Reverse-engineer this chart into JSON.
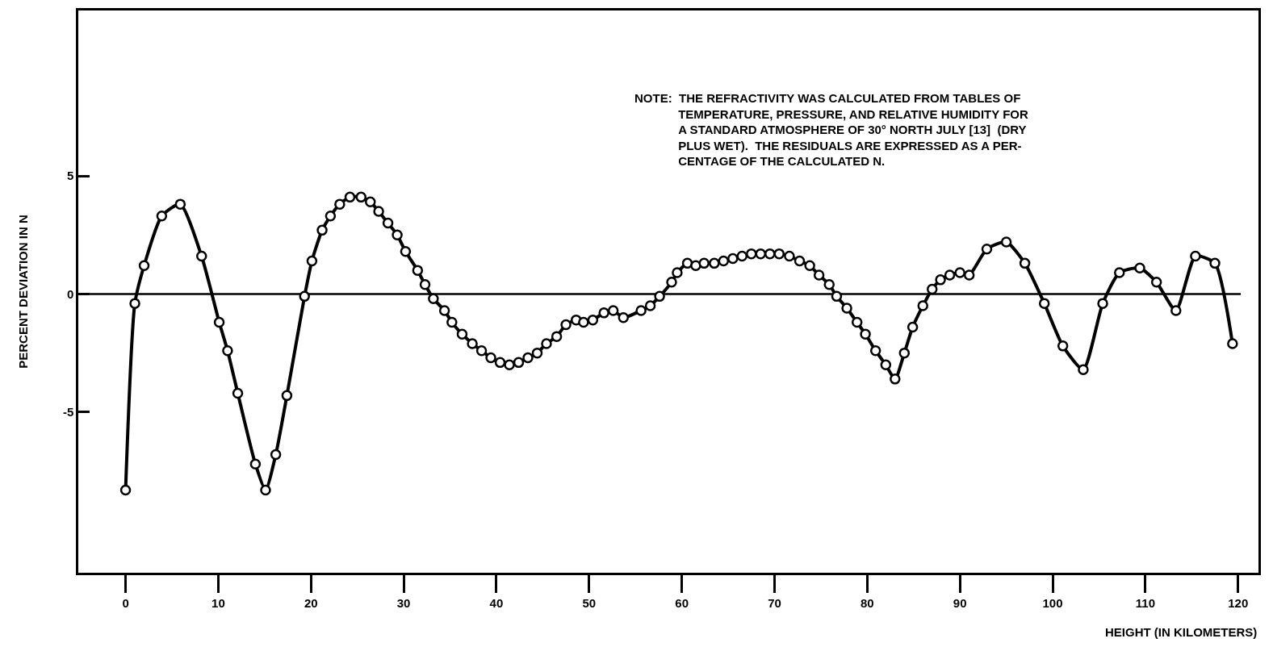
{
  "chart_data": {
    "type": "line",
    "xlabel": "HEIGHT (IN KILOMETERS)",
    "ylabel": "PERCENT DEVIATION IN N",
    "annotations": [
      "NOTE:  THE REFRACTIVITY WAS CALCULATED FROM TABLES OF\nTEMPERATURE, PRESSURE, AND RELATIVE HUMIDITY FOR\nA STANDARD ATMOSPHERE OF 30° NORTH JULY [13]  (DRY\nPLUS WET).  THE RESIDUALS ARE EXPRESSED AS A PER-\nCENTAGE OF THE CALCULATED N."
    ],
    "series": [
      {
        "color": "#000000",
        "x": [
          0,
          1.0,
          2.0,
          3.9,
          5.9,
          8.2,
          10.1,
          11.0,
          12.1,
          14.0,
          15.1,
          16.2,
          17.4,
          19.3,
          20.1,
          21.2,
          22.1,
          23.1,
          24.2,
          25.4,
          26.4,
          27.3,
          28.3,
          29.3,
          30.2,
          31.5,
          32.3,
          33.2,
          34.4,
          35.2,
          36.3,
          37.4,
          38.4,
          39.4,
          40.4,
          41.4,
          42.4,
          43.4,
          44.4,
          45.4,
          46.5,
          47.5,
          48.6,
          49.4,
          50.4,
          51.6,
          52.6,
          53.7,
          55.6,
          56.6,
          57.6,
          58.9,
          59.5,
          60.6,
          61.5,
          62.4,
          63.5,
          64.5,
          65.5,
          66.5,
          67.5,
          68.5,
          69.5,
          70.5,
          71.6,
          72.7,
          73.8,
          74.8,
          75.9,
          76.7,
          77.8,
          78.9,
          79.8,
          80.9,
          82.0,
          83.0,
          84.0,
          84.9,
          86.0,
          87.0,
          87.9,
          88.9,
          90.0,
          91.0,
          92.9,
          95.0,
          97.0,
          99.1,
          101.1,
          103.3,
          105.4,
          107.2,
          109.4,
          111.2,
          113.3,
          115.4,
          117.5,
          119.4
        ],
        "values": [
          -8.3,
          -0.4,
          1.2,
          3.3,
          3.8,
          1.6,
          -1.2,
          -2.4,
          -4.2,
          -7.2,
          -8.3,
          -6.8,
          -4.3,
          -0.1,
          1.4,
          2.7,
          3.3,
          3.8,
          4.1,
          4.1,
          3.9,
          3.5,
          3.0,
          2.5,
          1.8,
          1.0,
          0.4,
          -0.2,
          -0.7,
          -1.2,
          -1.7,
          -2.1,
          -2.4,
          -2.7,
          -2.9,
          -3.0,
          -2.9,
          -2.7,
          -2.5,
          -2.1,
          -1.8,
          -1.3,
          -1.1,
          -1.2,
          -1.1,
          -0.8,
          -0.7,
          -1.0,
          -0.7,
          -0.5,
          -0.1,
          0.5,
          0.9,
          1.3,
          1.2,
          1.3,
          1.3,
          1.4,
          1.5,
          1.6,
          1.7,
          1.7,
          1.7,
          1.7,
          1.6,
          1.4,
          1.2,
          0.8,
          0.4,
          -0.1,
          -0.6,
          -1.2,
          -1.7,
          -2.4,
          -3.0,
          -3.6,
          -2.5,
          -1.4,
          -0.5,
          0.2,
          0.6,
          0.8,
          0.9,
          0.8,
          1.9,
          2.2,
          1.3,
          -0.4,
          -2.2,
          -3.2,
          -0.4,
          0.9,
          1.1,
          0.5,
          -0.7,
          1.6,
          1.3,
          -2.1
        ]
      }
    ],
    "xlim": [
      -5.1,
      122.2
    ],
    "ylim": [
      -11.8,
      12.0
    ],
    "xticks": [
      0,
      10,
      20,
      30,
      40,
      50,
      60,
      70,
      80,
      90,
      100,
      110,
      120
    ],
    "yticks": [
      -5,
      0,
      5
    ],
    "ref_lines": [
      {
        "axis": "y",
        "value": 0,
        "color": "#000000"
      }
    ],
    "grid": false,
    "legend": false,
    "marker": "circle",
    "line_style": "solid"
  }
}
